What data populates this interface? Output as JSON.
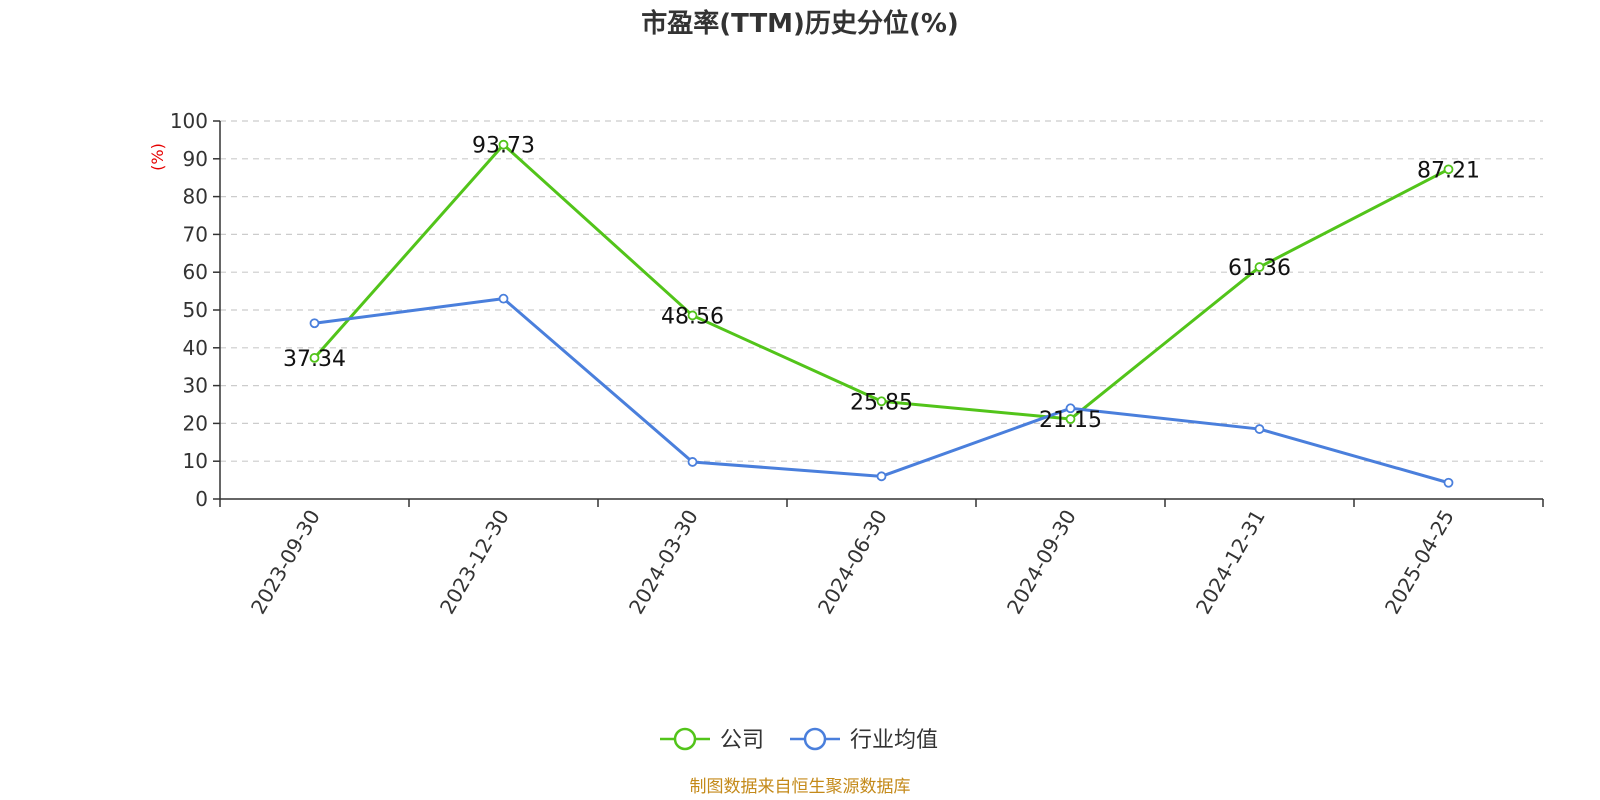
{
  "colors": {
    "company": "#52c41a",
    "industry": "#4a7fdc",
    "ylabel": "#e60000",
    "source": "#c48a1a",
    "grid": "#cccccc",
    "axis": "#333333"
  },
  "chart_data": {
    "type": "line",
    "title": "市盈率(TTM)历史分位(%)",
    "ylabel": "(%)",
    "xlabel": "",
    "ylim": [
      0,
      100
    ],
    "yticks": [
      0,
      10,
      20,
      30,
      40,
      50,
      60,
      70,
      80,
      90,
      100
    ],
    "categories": [
      "2023-09-30",
      "2023-12-30",
      "2024-03-30",
      "2024-06-30",
      "2024-09-30",
      "2024-12-31",
      "2025-04-25"
    ],
    "grid": true,
    "legend_position": "bottom-center",
    "series": [
      {
        "name": "公司",
        "values": [
          37.34,
          93.73,
          48.56,
          25.85,
          21.15,
          61.36,
          87.21
        ],
        "labels": [
          "37.34",
          "93.73",
          "48.56",
          "25.85",
          "21.15",
          "61.36",
          "87.21"
        ]
      },
      {
        "name": "行业均值",
        "values": [
          46.5,
          53.0,
          9.8,
          6.0,
          24.0,
          18.5,
          4.3
        ]
      }
    ]
  },
  "source": "制图数据来自恒生聚源数据库"
}
